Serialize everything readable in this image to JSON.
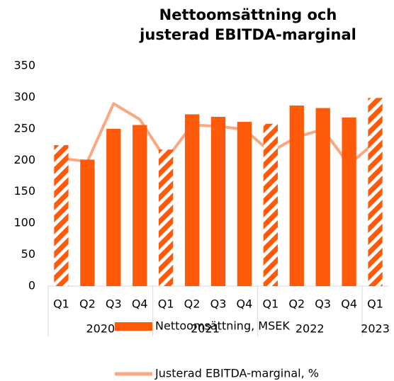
{
  "chart_data": {
    "type": "bar_line",
    "title": [
      "Nettoomsättning och",
      "justerad EBITDA-marginal"
    ],
    "categories": [
      "Q1",
      "Q2",
      "Q3",
      "Q4",
      "Q1",
      "Q2",
      "Q3",
      "Q4",
      "Q1",
      "Q2",
      "Q3",
      "Q4",
      "Q1"
    ],
    "groups": [
      {
        "label": "2020",
        "span": 4
      },
      {
        "label": "2021",
        "span": 4
      },
      {
        "label": "2022",
        "span": 4
      },
      {
        "label": "2023",
        "span": 1
      }
    ],
    "series": [
      {
        "name": "Nettoomsättning, MSEK",
        "type": "bar",
        "color": "#ff5a0a",
        "values": [
          224,
          201,
          250,
          256,
          217,
          273,
          269,
          261,
          258,
          287,
          283,
          268,
          299
        ],
        "hatched": [
          true,
          false,
          false,
          false,
          true,
          false,
          false,
          false,
          true,
          false,
          false,
          false,
          true
        ]
      },
      {
        "name": "Justerad EBITDA-marginal, %",
        "type": "line",
        "color": "#f9a880",
        "values": [
          203,
          198,
          290,
          265,
          201,
          256,
          254,
          249,
          213,
          237,
          249,
          193,
          229
        ]
      }
    ],
    "ylim": [
      0,
      350
    ],
    "yticks": [
      0,
      50,
      100,
      150,
      200,
      250,
      300,
      350
    ],
    "grid": false,
    "legend": "bottom"
  }
}
